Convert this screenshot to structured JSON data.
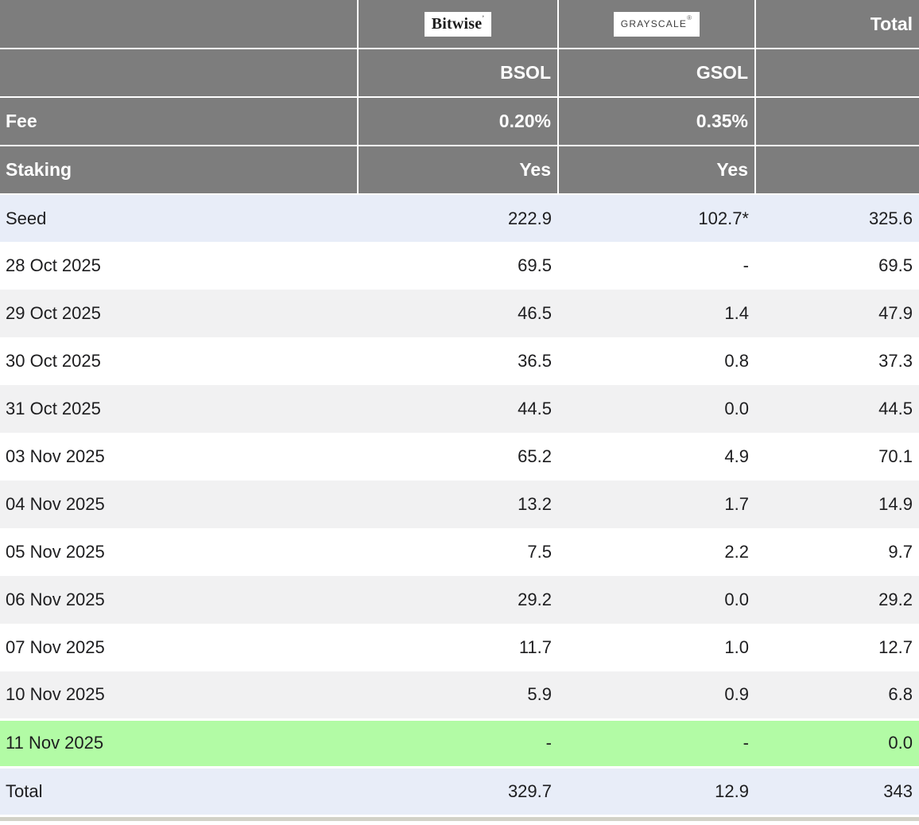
{
  "table": {
    "header": {
      "corner": "",
      "total_label": "Total",
      "fee_label": "Fee",
      "staking_label": "Staking",
      "providers": [
        {
          "logo": "Bitwise",
          "logo_mark": "’",
          "ticker": "BSOL",
          "fee": "0.20%",
          "staking": "Yes"
        },
        {
          "logo": "GRAYSCALE",
          "logo_mark": "®",
          "ticker": "GSOL",
          "fee": "0.35%",
          "staking": "Yes"
        }
      ]
    },
    "rows": [
      {
        "label": "Seed",
        "bsol": "222.9",
        "gsol": "102.7*",
        "total": "325.6",
        "highlight": "blue"
      },
      {
        "label": "28 Oct 2025",
        "bsol": "69.5",
        "gsol": "-",
        "total": "69.5",
        "highlight": "white"
      },
      {
        "label": "29 Oct 2025",
        "bsol": "46.5",
        "gsol": "1.4",
        "total": "47.9",
        "highlight": "gray"
      },
      {
        "label": "30 Oct 2025",
        "bsol": "36.5",
        "gsol": "0.8",
        "total": "37.3",
        "highlight": "white"
      },
      {
        "label": "31 Oct 2025",
        "bsol": "44.5",
        "gsol": "0.0",
        "total": "44.5",
        "highlight": "gray"
      },
      {
        "label": "03 Nov 2025",
        "bsol": "65.2",
        "gsol": "4.9",
        "total": "70.1",
        "highlight": "white"
      },
      {
        "label": "04 Nov 2025",
        "bsol": "13.2",
        "gsol": "1.7",
        "total": "14.9",
        "highlight": "gray"
      },
      {
        "label": "05 Nov 2025",
        "bsol": "7.5",
        "gsol": "2.2",
        "total": "9.7",
        "highlight": "white"
      },
      {
        "label": "06 Nov 2025",
        "bsol": "29.2",
        "gsol": "0.0",
        "total": "29.2",
        "highlight": "gray"
      },
      {
        "label": "07 Nov 2025",
        "bsol": "11.7",
        "gsol": "1.0",
        "total": "12.7",
        "highlight": "white"
      },
      {
        "label": "10 Nov 2025",
        "bsol": "5.9",
        "gsol": "0.9",
        "total": "6.8",
        "highlight": "gray"
      },
      {
        "label": "11 Nov 2025",
        "bsol": "-",
        "gsol": "-",
        "total": "0.0",
        "highlight": "green"
      },
      {
        "label": "Total",
        "bsol": "329.7",
        "gsol": "12.9",
        "total": "343",
        "highlight": "blue"
      }
    ]
  },
  "chart_data": {
    "type": "table",
    "columns": [
      "",
      "BSOL",
      "GSOL",
      "Total"
    ],
    "provider_meta": {
      "BSOL": {
        "issuer": "Bitwise",
        "fee": "0.20%",
        "staking": "Yes"
      },
      "GSOL": {
        "issuer": "GRAYSCALE",
        "fee": "0.35%",
        "staking": "Yes"
      }
    },
    "rows": [
      [
        "Seed",
        222.9,
        "102.7*",
        325.6
      ],
      [
        "28 Oct 2025",
        69.5,
        "-",
        69.5
      ],
      [
        "29 Oct 2025",
        46.5,
        1.4,
        47.9
      ],
      [
        "30 Oct 2025",
        36.5,
        0.8,
        37.3
      ],
      [
        "31 Oct 2025",
        44.5,
        0.0,
        44.5
      ],
      [
        "03 Nov 2025",
        65.2,
        4.9,
        70.1
      ],
      [
        "04 Nov 2025",
        13.2,
        1.7,
        14.9
      ],
      [
        "05 Nov 2025",
        7.5,
        2.2,
        9.7
      ],
      [
        "06 Nov 2025",
        29.2,
        0.0,
        29.2
      ],
      [
        "07 Nov 2025",
        11.7,
        1.0,
        12.7
      ],
      [
        "10 Nov 2025",
        5.9,
        0.9,
        6.8
      ],
      [
        "11 Nov 2025",
        "-",
        "-",
        0.0
      ],
      [
        "Total",
        329.7,
        12.9,
        343
      ]
    ]
  },
  "colors": {
    "header_bg": "#7d7d7d",
    "header_text": "#ffffff",
    "row_stripe": "#f1f1f2",
    "row_blue": "#e8edf8",
    "row_green": "#b2fba5",
    "strip": "#d2d2c8",
    "body_text": "#1d1d1f"
  }
}
